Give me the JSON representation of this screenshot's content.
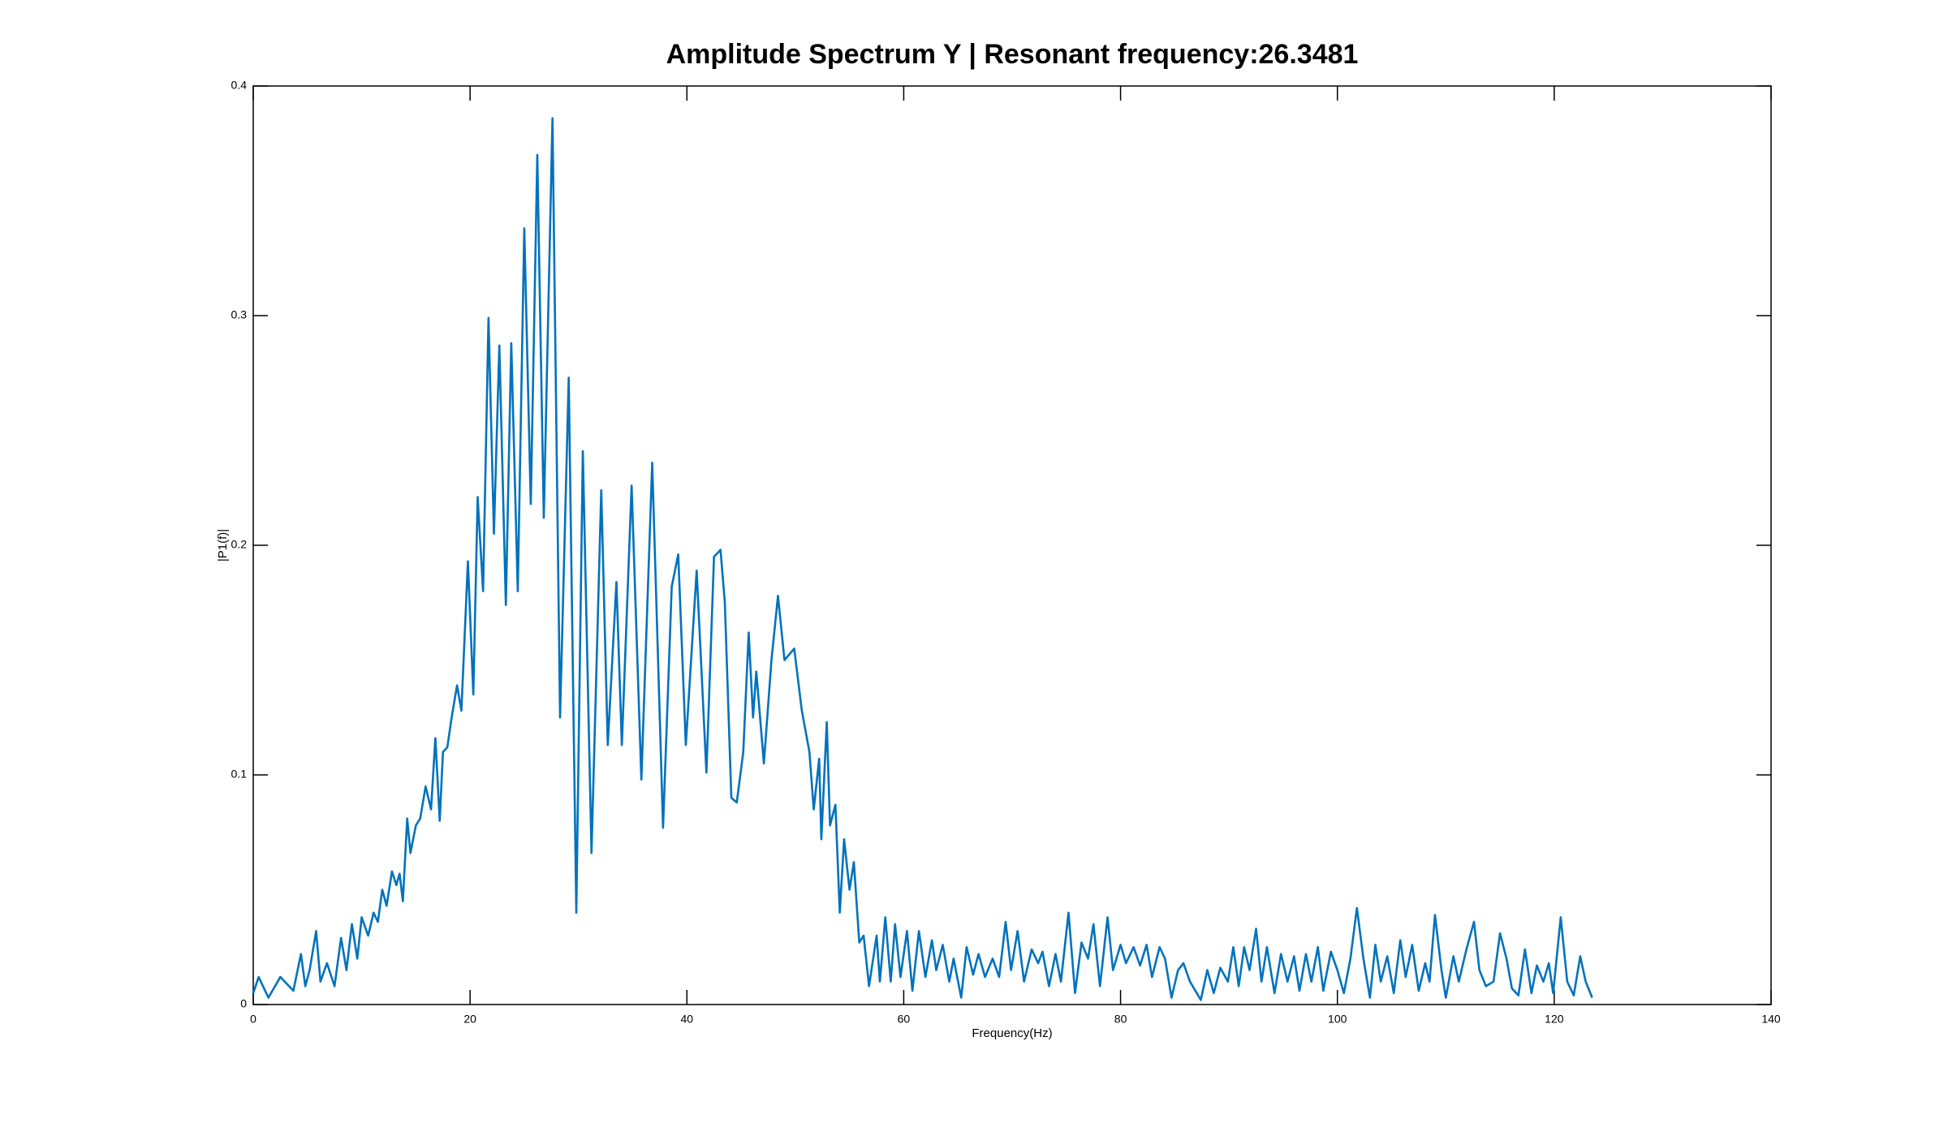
{
  "chart_data": {
    "type": "line",
    "title": "Amplitude Spectrum Y | Resonant frequency:26.3481",
    "x_label": "Frequency(Hz)",
    "y_label": "|P1(f)|",
    "color": "#0072bd",
    "xlim": [
      0,
      140
    ],
    "xticks": [
      0,
      20,
      40,
      60,
      80,
      100,
      120,
      140
    ],
    "ylim": [
      0,
      0.4
    ],
    "yticks": [
      0,
      0.1,
      0.2,
      0.3,
      0.4
    ],
    "grid": false,
    "x": [
      0,
      0.5,
      1.4,
      2.5,
      3.7,
      4.4,
      4.8,
      5.2,
      5.8,
      6.2,
      6.8,
      7.5,
      8.1,
      8.6,
      9.1,
      9.6,
      10.0,
      10.6,
      11.1,
      11.5,
      11.9,
      12.3,
      12.8,
      13.2,
      13.5,
      13.8,
      14.2,
      14.5,
      15.0,
      15.4,
      15.9,
      16.4,
      16.8,
      17.2,
      17.5,
      17.9,
      18.3,
      18.8,
      19.2,
      19.8,
      20.3,
      20.7,
      21.2,
      21.7,
      22.2,
      22.7,
      23.3,
      23.8,
      24.4,
      25.0,
      25.6,
      26.2,
      26.8,
      27.6,
      28.3,
      29.1,
      29.8,
      30.4,
      31.2,
      32.1,
      32.7,
      33.5,
      34.0,
      34.9,
      35.8,
      36.8,
      37.8,
      38.6,
      39.2,
      39.9,
      40.9,
      41.8,
      42.5,
      43.1,
      43.5,
      44.1,
      44.6,
      45.2,
      45.7,
      46.1,
      46.4,
      47.1,
      47.8,
      48.4,
      49.0,
      49.9,
      50.6,
      51.3,
      51.7,
      52.2,
      52.4,
      52.9,
      53.2,
      53.7,
      54.1,
      54.5,
      55.0,
      55.4,
      55.9,
      56.3,
      56.8,
      57.5,
      57.8,
      58.3,
      58.8,
      59.2,
      59.7,
      60.3,
      60.8,
      61.4,
      62.0,
      62.6,
      63.0,
      63.6,
      64.2,
      64.6,
      65.3,
      65.8,
      66.4,
      66.9,
      67.5,
      68.2,
      68.8,
      69.4,
      69.9,
      70.5,
      71.1,
      71.8,
      72.4,
      72.8,
      73.4,
      74.0,
      74.5,
      75.2,
      75.8,
      76.4,
      77.0,
      77.5,
      78.1,
      78.8,
      79.3,
      80.0,
      80.5,
      81.2,
      81.8,
      82.4,
      82.9,
      83.6,
      84.1,
      84.7,
      85.3,
      85.8,
      86.4,
      86.9,
      87.4,
      88.0,
      88.6,
      89.2,
      89.9,
      90.4,
      90.9,
      91.4,
      91.9,
      92.5,
      93.0,
      93.5,
      94.2,
      94.8,
      95.4,
      96.0,
      96.5,
      97.1,
      97.6,
      98.2,
      98.7,
      99.4,
      100.0,
      100.6,
      101.2,
      101.8,
      102.4,
      103.0,
      103.5,
      104.0,
      104.6,
      105.2,
      105.8,
      106.3,
      106.9,
      107.5,
      108.1,
      108.5,
      109.0,
      109.6,
      110.0,
      110.7,
      111.2,
      111.9,
      112.6,
      113.1,
      113.7,
      114.4,
      115.0,
      115.6,
      116.1,
      116.7,
      117.3,
      117.9,
      118.4,
      119.0,
      119.5,
      119.9,
      120.6,
      121.2,
      121.8,
      122.4,
      122.9,
      123.5
    ],
    "values": [
      0.005,
      0.012,
      0.003,
      0.012,
      0.006,
      0.022,
      0.008,
      0.015,
      0.032,
      0.01,
      0.018,
      0.008,
      0.029,
      0.015,
      0.035,
      0.02,
      0.038,
      0.03,
      0.04,
      0.036,
      0.05,
      0.043,
      0.058,
      0.052,
      0.057,
      0.045,
      0.081,
      0.066,
      0.078,
      0.081,
      0.095,
      0.085,
      0.116,
      0.08,
      0.11,
      0.112,
      0.125,
      0.139,
      0.128,
      0.193,
      0.135,
      0.221,
      0.18,
      0.299,
      0.205,
      0.287,
      0.174,
      0.288,
      0.18,
      0.338,
      0.218,
      0.37,
      0.212,
      0.386,
      0.125,
      0.273,
      0.04,
      0.241,
      0.066,
      0.224,
      0.113,
      0.184,
      0.113,
      0.226,
      0.098,
      0.236,
      0.077,
      0.182,
      0.196,
      0.113,
      0.189,
      0.101,
      0.195,
      0.198,
      0.175,
      0.09,
      0.088,
      0.11,
      0.162,
      0.125,
      0.145,
      0.105,
      0.15,
      0.178,
      0.15,
      0.155,
      0.128,
      0.11,
      0.085,
      0.107,
      0.072,
      0.123,
      0.078,
      0.087,
      0.04,
      0.072,
      0.05,
      0.062,
      0.027,
      0.03,
      0.008,
      0.03,
      0.01,
      0.038,
      0.01,
      0.035,
      0.012,
      0.032,
      0.006,
      0.032,
      0.012,
      0.028,
      0.015,
      0.026,
      0.01,
      0.02,
      0.003,
      0.025,
      0.013,
      0.022,
      0.012,
      0.02,
      0.012,
      0.036,
      0.015,
      0.032,
      0.01,
      0.024,
      0.018,
      0.023,
      0.008,
      0.022,
      0.01,
      0.04,
      0.005,
      0.027,
      0.02,
      0.035,
      0.008,
      0.038,
      0.015,
      0.026,
      0.018,
      0.025,
      0.017,
      0.026,
      0.012,
      0.025,
      0.02,
      0.003,
      0.015,
      0.018,
      0.01,
      0.006,
      0.002,
      0.015,
      0.005,
      0.016,
      0.01,
      0.025,
      0.008,
      0.025,
      0.015,
      0.033,
      0.01,
      0.025,
      0.005,
      0.022,
      0.01,
      0.021,
      0.006,
      0.022,
      0.01,
      0.025,
      0.006,
      0.023,
      0.015,
      0.005,
      0.02,
      0.042,
      0.02,
      0.003,
      0.026,
      0.01,
      0.021,
      0.005,
      0.028,
      0.012,
      0.026,
      0.006,
      0.018,
      0.01,
      0.039,
      0.015,
      0.003,
      0.021,
      0.01,
      0.024,
      0.036,
      0.015,
      0.008,
      0.01,
      0.031,
      0.02,
      0.007,
      0.004,
      0.024,
      0.005,
      0.017,
      0.01,
      0.018,
      0.005,
      0.038,
      0.01,
      0.004,
      0.021,
      0.01,
      0.003
    ]
  }
}
